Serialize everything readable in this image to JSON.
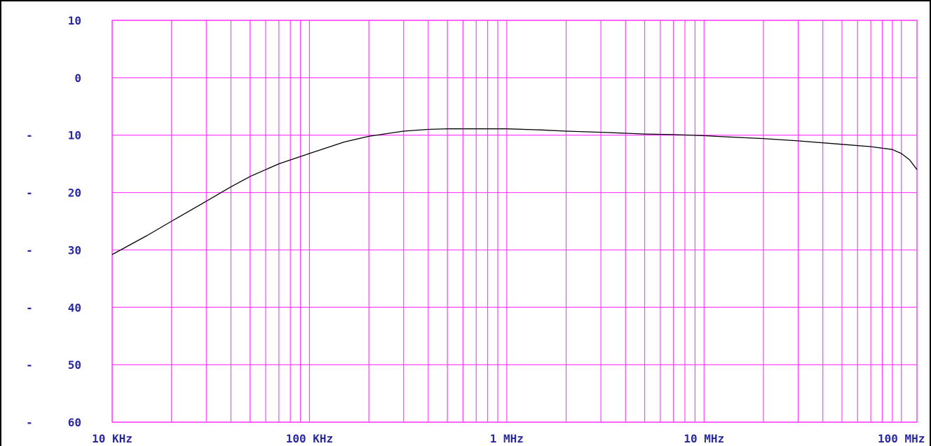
{
  "chart_data": {
    "type": "line",
    "title": "",
    "xlabel": "",
    "ylabel": "",
    "x_scale": "log",
    "x_unit": "Hz",
    "xlim": [
      10000,
      120000000
    ],
    "ylim": [
      -60,
      10
    ],
    "grid": true,
    "colors": {
      "grid": "#ff40ff",
      "axis_text": "#2a2aa0",
      "trace": "#000000",
      "border": "#000000"
    },
    "x_tick_labels": [
      {
        "x": 10000,
        "label": "10 KHz"
      },
      {
        "x": 100000,
        "label": "100 KHz"
      },
      {
        "x": 1000000,
        "label": "1 MHz"
      },
      {
        "x": 10000000,
        "label": "10 MHz"
      },
      {
        "x": 100000000,
        "label": "100 MHz"
      }
    ],
    "y_tick_labels": [
      {
        "y": 10,
        "sign": "",
        "label": "10"
      },
      {
        "y": 0,
        "sign": "",
        "label": "0"
      },
      {
        "y": -10,
        "sign": "-",
        "label": "10"
      },
      {
        "y": -20,
        "sign": "-",
        "label": "20"
      },
      {
        "y": -30,
        "sign": "-",
        "label": "30"
      },
      {
        "y": -40,
        "sign": "-",
        "label": "40"
      },
      {
        "y": -50,
        "sign": "-",
        "label": "50"
      },
      {
        "y": -60,
        "sign": "-",
        "label": "60"
      }
    ],
    "series": [
      {
        "x": [
          10000,
          15000,
          20000,
          30000,
          40000,
          50000,
          70000,
          100000,
          150000,
          200000,
          300000,
          400000,
          500000,
          700000,
          1000000,
          1500000,
          2000000,
          3000000,
          5000000,
          7000000,
          10000000,
          15000000,
          20000000,
          30000000,
          50000000,
          70000000,
          90000000,
          100000000,
          110000000,
          120000000
        ],
        "values": [
          -30.8,
          -27.5,
          -25,
          -21.5,
          -19,
          -17.2,
          -15,
          -13.2,
          -11.2,
          -10.2,
          -9.3,
          -9,
          -8.9,
          -8.9,
          -8.9,
          -9.1,
          -9.3,
          -9.5,
          -9.8,
          -9.9,
          -10.1,
          -10.4,
          -10.6,
          -11,
          -11.6,
          -12,
          -12.5,
          -13.2,
          -14.3,
          -16
        ]
      }
    ]
  }
}
